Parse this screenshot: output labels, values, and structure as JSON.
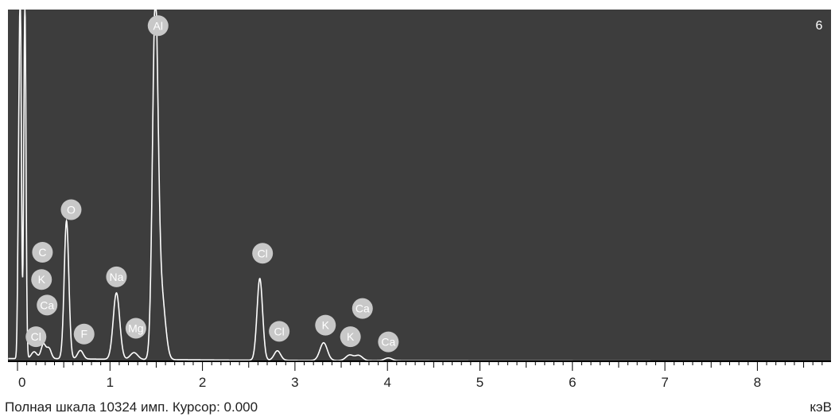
{
  "chart_data": {
    "type": "line",
    "title": "",
    "xlabel": "кэВ",
    "ylabel": "",
    "xlim": [
      -0.1,
      8.95
    ],
    "ylim": [
      0,
      10324
    ],
    "corner_label": "6",
    "x_ticks": [
      0,
      1,
      2,
      3,
      4,
      5,
      6,
      7,
      8
    ],
    "x_tick_labels": [
      "0",
      "1",
      "2",
      "3",
      "4",
      "5",
      "6",
      "7",
      "8"
    ],
    "grid": false,
    "legend": "none",
    "status": "Полная шкала 10324 имп. Курсор: 0.000",
    "colors": {
      "plot_background": "#3d3d3d",
      "spectrum": "#ffffff",
      "label_circle": "#c8c8c8",
      "label_text": "#ffffff",
      "frame": "#000000"
    },
    "baseline": 80,
    "peaks": [
      {
        "x": 0.03,
        "height": 10324,
        "width": 0.012
      },
      {
        "x": 0.08,
        "height": 10324,
        "width": 0.012
      },
      {
        "x": 0.01,
        "height": 3100,
        "width": 0.01
      },
      {
        "x": 0.18,
        "height": 200,
        "width": 0.03
      },
      {
        "x": 0.28,
        "height": 420,
        "width": 0.025
      },
      {
        "x": 0.34,
        "height": 300,
        "width": 0.025
      },
      {
        "x": 0.53,
        "height": 4050,
        "width": 0.025
      },
      {
        "x": 0.68,
        "height": 250,
        "width": 0.03
      },
      {
        "x": 1.07,
        "height": 1950,
        "width": 0.035
      },
      {
        "x": 1.26,
        "height": 200,
        "width": 0.04
      },
      {
        "x": 1.49,
        "height": 10324,
        "width": 0.03
      },
      {
        "x": 1.56,
        "height": 1800,
        "width": 0.04
      },
      {
        "x": 2.62,
        "height": 2400,
        "width": 0.03
      },
      {
        "x": 2.81,
        "height": 280,
        "width": 0.035
      },
      {
        "x": 3.31,
        "height": 520,
        "width": 0.04
      },
      {
        "x": 3.59,
        "height": 160,
        "width": 0.04
      },
      {
        "x": 3.69,
        "height": 150,
        "width": 0.04
      },
      {
        "x": 4.01,
        "height": 80,
        "width": 0.04
      }
    ],
    "annotations": [
      {
        "label": "Al",
        "x": 1.52,
        "y": 9850
      },
      {
        "label": "O",
        "x": 0.58,
        "y": 4450
      },
      {
        "label": "C",
        "x": 0.27,
        "y": 3200
      },
      {
        "label": "K",
        "x": 0.26,
        "y": 2400
      },
      {
        "label": "Ca",
        "x": 0.32,
        "y": 1650
      },
      {
        "label": "Cl",
        "x": 0.2,
        "y": 720
      },
      {
        "label": "F",
        "x": 0.72,
        "y": 800
      },
      {
        "label": "Na",
        "x": 1.07,
        "y": 2480
      },
      {
        "label": "Mg",
        "x": 1.28,
        "y": 970
      },
      {
        "label": "Cl",
        "x": 2.65,
        "y": 3170
      },
      {
        "label": "Cl",
        "x": 2.83,
        "y": 880
      },
      {
        "label": "K",
        "x": 3.33,
        "y": 1060
      },
      {
        "label": "K",
        "x": 3.6,
        "y": 720
      },
      {
        "label": "Ca",
        "x": 3.73,
        "y": 1550
      },
      {
        "label": "Ca",
        "x": 4.01,
        "y": 570
      }
    ]
  }
}
